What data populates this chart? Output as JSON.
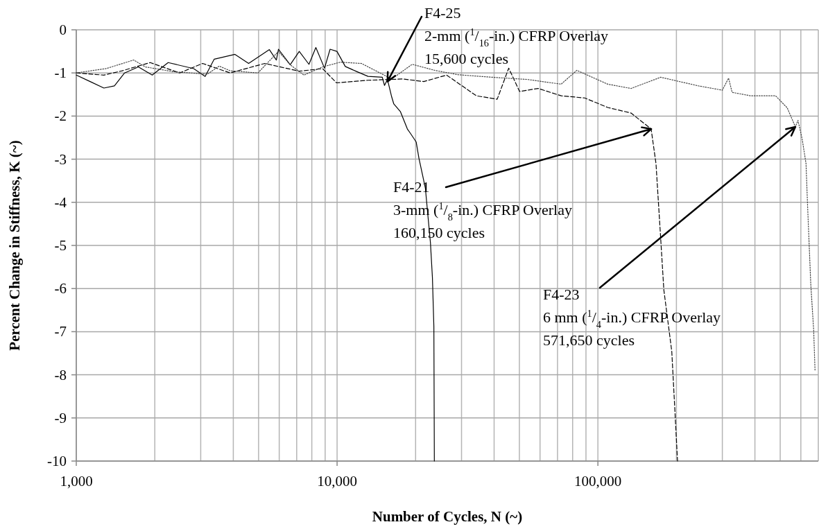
{
  "chart_data": {
    "type": "line",
    "xlabel": "Number of Cycles, N (~)",
    "ylabel": "Percent Change in Stiffness, K (~)",
    "log": "x",
    "grid": true,
    "xlim": [
      1000,
      700000
    ],
    "xticks": [
      {
        "value": 1000,
        "label": "1,000"
      },
      {
        "value": 2000,
        "label": null
      },
      {
        "value": 3000,
        "label": null
      },
      {
        "value": 4000,
        "label": null
      },
      {
        "value": 5000,
        "label": null
      },
      {
        "value": 6000,
        "label": null
      },
      {
        "value": 7000,
        "label": null
      },
      {
        "value": 8000,
        "label": null
      },
      {
        "value": 9000,
        "label": null
      },
      {
        "value": 10000,
        "label": "10,000"
      },
      {
        "value": 20000,
        "label": null
      },
      {
        "value": 30000,
        "label": null
      },
      {
        "value": 40000,
        "label": null
      },
      {
        "value": 50000,
        "label": null
      },
      {
        "value": 60000,
        "label": null
      },
      {
        "value": 70000,
        "label": null
      },
      {
        "value": 80000,
        "label": null
      },
      {
        "value": 90000,
        "label": null
      },
      {
        "value": 100000,
        "label": "100,000"
      },
      {
        "value": 200000,
        "label": null
      },
      {
        "value": 300000,
        "label": null
      },
      {
        "value": 400000,
        "label": null
      },
      {
        "value": 500000,
        "label": null
      },
      {
        "value": 600000,
        "label": null
      },
      {
        "value": 700000,
        "label": null
      }
    ],
    "ylim": [
      -10,
      0
    ],
    "yticks": [
      0,
      -1,
      -2,
      -3,
      -4,
      -5,
      -6,
      -7,
      -8,
      -9,
      -10
    ],
    "series": [
      {
        "color": "#000000",
        "line_style": "solid",
        "x": [
          1000,
          1130,
          1276,
          1400,
          1532,
          1730,
          1955,
          2250,
          2820,
          3120,
          3380,
          4060,
          4580,
          5500,
          5850,
          5960,
          6610,
          7160,
          7800,
          8290,
          8950,
          9400,
          9990,
          10750,
          11920,
          13140,
          14900,
          15200,
          15600,
          16200,
          16500,
          17500,
          18600,
          19100,
          20100,
          20600,
          21800,
          22800,
          23200,
          23500,
          23600
        ],
        "values": [
          -1.05,
          -1.2,
          -1.35,
          -1.3,
          -1.0,
          -0.86,
          -1.05,
          -0.76,
          -0.9,
          -1.08,
          -0.68,
          -0.57,
          -0.78,
          -0.46,
          -0.7,
          -0.45,
          -0.81,
          -0.5,
          -0.8,
          -0.41,
          -0.89,
          -0.45,
          -0.5,
          -0.85,
          -0.97,
          -1.08,
          -1.1,
          -1.29,
          -1.15,
          -1.56,
          -1.72,
          -1.9,
          -2.3,
          -2.4,
          -2.6,
          -2.98,
          -3.67,
          -4.94,
          -5.74,
          -6.88,
          -10
        ]
      },
      {
        "color": "#000000",
        "line_style": "dashed",
        "x": [
          1000,
          1276,
          1500,
          1920,
          2490,
          3050,
          3890,
          5280,
          7160,
          8800,
          9950,
          13140,
          17900,
          21500,
          26300,
          34200,
          41100,
          45500,
          50100,
          59000,
          72300,
          89000,
          109000,
          134000,
          160000,
          167000,
          174000,
          179000,
          192000,
          202000
        ],
        "values": [
          -1.0,
          -1.05,
          -0.95,
          -0.76,
          -1.0,
          -0.78,
          -1.0,
          -0.78,
          -0.96,
          -0.9,
          -1.23,
          -1.17,
          -1.14,
          -1.2,
          -1.05,
          -1.53,
          -1.61,
          -0.89,
          -1.43,
          -1.36,
          -1.53,
          -1.58,
          -1.8,
          -1.93,
          -2.3,
          -3.1,
          -4.82,
          -6.03,
          -7.46,
          -10
        ]
      },
      {
        "color": "#444444",
        "line_style": "dotted",
        "x": [
          1000,
          1300,
          1660,
          1840,
          2350,
          3180,
          3530,
          3890,
          4970,
          5960,
          6610,
          7460,
          8800,
          10300,
          12400,
          16200,
          19400,
          23700,
          29000,
          39300,
          53400,
          72300,
          83000,
          109000,
          134000,
          174000,
          243000,
          300000,
          317000,
          327000,
          385000,
          480000,
          532000,
          571650,
          585000,
          607000,
          628000,
          637000,
          655000,
          672000,
          680000
        ],
        "values": [
          -1.0,
          -0.9,
          -0.7,
          -0.86,
          -0.97,
          -1.03,
          -0.84,
          -0.95,
          -1.0,
          -0.5,
          -0.81,
          -1.05,
          -0.86,
          -0.75,
          -0.78,
          -1.14,
          -0.8,
          -0.94,
          -1.04,
          -1.1,
          -1.15,
          -1.26,
          -0.94,
          -1.26,
          -1.36,
          -1.1,
          -1.3,
          -1.4,
          -1.12,
          -1.45,
          -1.53,
          -1.53,
          -1.81,
          -2.25,
          -2.1,
          -2.53,
          -3.1,
          -4.1,
          -5.9,
          -6.97,
          -7.9
        ]
      }
    ],
    "annotations": [
      {
        "text": "F4-25\n2-mm ($^{1}$/$_{16}$-in.) CFRP Overlay\n15,600 cycles",
        "x": 15600,
        "y": -1.2
      },
      {
        "text": "F4-21\n3-mm ($^{1}$/$_{8}$-in.) CFRP Overlay\n160,150 cycles",
        "x": 160150,
        "y": -2.3
      },
      {
        "text": "F4-23\n6 mm ($^{1}$/$_{4}$-in.) CFRP Overlay\n571,650 cycles",
        "x": 571650,
        "y": -2.25
      }
    ]
  }
}
